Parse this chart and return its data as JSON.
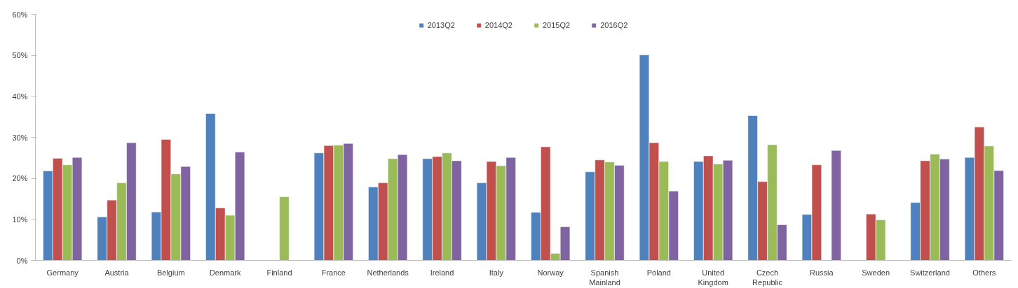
{
  "chart_data": {
    "type": "bar",
    "categories": [
      "Germany",
      "Austria",
      "Belgium",
      "Denmark",
      "Finland",
      "France",
      "Netherlands",
      "Ireland",
      "Italy",
      "Norway",
      "Spanish Mainland",
      "Poland",
      "United Kingdom",
      "Czech Republic",
      "Russia",
      "Sweden",
      "Switzerland",
      "Others"
    ],
    "series": [
      {
        "name": "2013Q2",
        "color": "#4f81bd",
        "values": [
          21.8,
          10.6,
          11.8,
          35.8,
          null,
          26.2,
          17.9,
          24.8,
          18.9,
          11.7,
          21.6,
          50.1,
          24.1,
          35.3,
          11.2,
          null,
          14.1,
          25.1
        ]
      },
      {
        "name": "2014Q2",
        "color": "#c0504d",
        "values": [
          24.9,
          14.7,
          29.5,
          12.8,
          null,
          28.0,
          18.9,
          25.3,
          24.1,
          27.7,
          24.5,
          28.7,
          25.5,
          19.2,
          23.3,
          11.3,
          24.3,
          32.5
        ]
      },
      {
        "name": "2015Q2",
        "color": "#9bbb59",
        "values": [
          23.3,
          18.9,
          21.1,
          11.0,
          15.5,
          28.1,
          24.8,
          26.2,
          23.1,
          1.7,
          24.0,
          24.1,
          23.5,
          28.2,
          null,
          9.9,
          25.9,
          27.9
        ]
      },
      {
        "name": "2016Q2",
        "color": "#8064a2",
        "values": [
          25.1,
          28.7,
          22.9,
          26.4,
          null,
          28.5,
          25.8,
          24.3,
          25.1,
          8.2,
          23.2,
          16.9,
          24.4,
          8.7,
          26.8,
          null,
          24.7,
          21.9
        ]
      }
    ],
    "ylim": [
      0,
      60
    ],
    "yticks": [
      {
        "value": 0,
        "label": "0%"
      },
      {
        "value": 10,
        "label": "10%"
      },
      {
        "value": 20,
        "label": "20%"
      },
      {
        "value": 30,
        "label": "30%"
      },
      {
        "value": 40,
        "label": "40%"
      },
      {
        "value": 50,
        "label": "50%"
      },
      {
        "value": 60,
        "label": "60%"
      }
    ],
    "grid": false,
    "legend": "top"
  }
}
